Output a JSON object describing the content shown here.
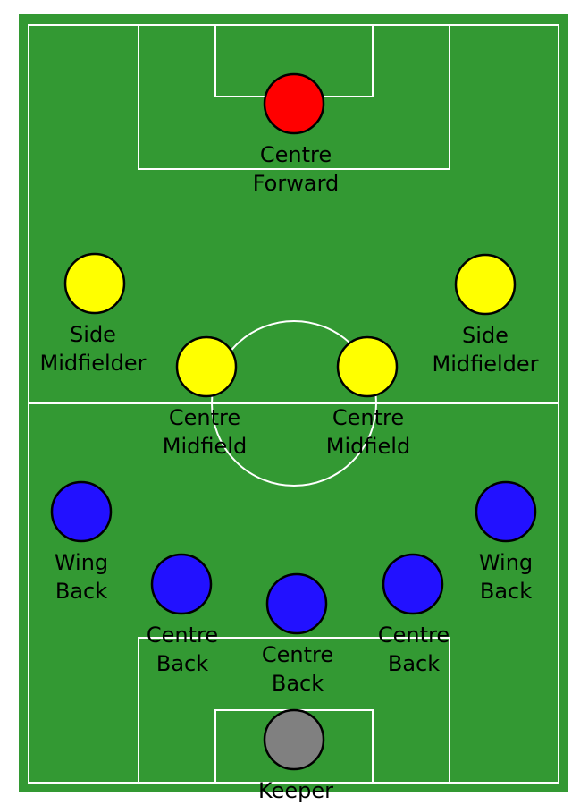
{
  "colors": {
    "grass": "#339933",
    "lines": "#ffffff",
    "forward": "#ff0000",
    "midfielder": "#ffff00",
    "defender": "#2211ff",
    "keeper": "#808080",
    "outline": "#000000",
    "text": "#000000"
  },
  "players": [
    {
      "id": "centre-forward",
      "role": "forward",
      "label": [
        "Centre",
        "Forward"
      ]
    },
    {
      "id": "side-midfielder-left",
      "role": "midfielder",
      "label": [
        "Side",
        "Midfielder"
      ]
    },
    {
      "id": "side-midfielder-right",
      "role": "midfielder",
      "label": [
        "Side",
        "Midfielder"
      ]
    },
    {
      "id": "centre-midfield-left",
      "role": "midfielder",
      "label": [
        "Centre",
        "Midfield"
      ]
    },
    {
      "id": "centre-midfield-right",
      "role": "midfielder",
      "label": [
        "Centre",
        "Midfield"
      ]
    },
    {
      "id": "wing-back-left",
      "role": "defender",
      "label": [
        "Wing",
        "Back"
      ]
    },
    {
      "id": "wing-back-right",
      "role": "defender",
      "label": [
        "Wing",
        "Back"
      ]
    },
    {
      "id": "centre-back-left",
      "role": "defender",
      "label": [
        "Centre",
        "Back"
      ]
    },
    {
      "id": "centre-back-middle",
      "role": "defender",
      "label": [
        "Centre",
        "Back"
      ]
    },
    {
      "id": "centre-back-right",
      "role": "defender",
      "label": [
        "Centre",
        "Back"
      ]
    },
    {
      "id": "keeper",
      "role": "keeper",
      "label": [
        "Keeper"
      ]
    }
  ]
}
